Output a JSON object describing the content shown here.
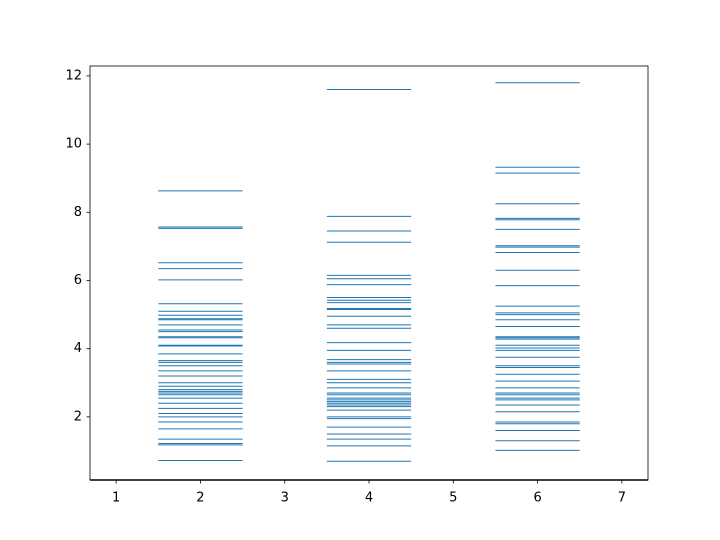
{
  "chart_data": {
    "type": "eventplot",
    "color": "#1f77b4",
    "linelength": 1,
    "xlim": [
      0.69,
      7.31
    ],
    "xticks": [
      1,
      2,
      3,
      4,
      5,
      6,
      7
    ],
    "ylim": [
      0.15,
      12.29
    ],
    "yticks": [
      2,
      4,
      6,
      8,
      10,
      12
    ],
    "series": [
      {
        "offset": 2,
        "values": [
          8.63,
          7.53,
          7.57,
          6.52,
          6.35,
          6.02,
          5.32,
          5.1,
          4.98,
          4.88,
          4.85,
          4.7,
          4.55,
          4.5,
          4.35,
          4.32,
          4.1,
          4.08,
          3.85,
          3.65,
          3.6,
          3.5,
          3.35,
          3.2,
          3.0,
          2.9,
          2.8,
          2.75,
          2.7,
          2.65,
          2.55,
          2.4,
          2.25,
          2.1,
          2.0,
          1.85,
          1.65,
          1.35,
          1.22,
          1.18,
          0.72
        ]
      },
      {
        "offset": 4,
        "values": [
          11.6,
          7.88,
          7.45,
          7.12,
          6.15,
          6.05,
          5.88,
          5.5,
          5.42,
          5.35,
          5.18,
          5.15,
          4.95,
          4.7,
          4.6,
          4.18,
          3.95,
          3.68,
          3.6,
          3.55,
          3.35,
          3.1,
          3.0,
          2.85,
          2.7,
          2.65,
          2.55,
          2.5,
          2.45,
          2.4,
          2.35,
          2.3,
          2.2,
          2.0,
          1.95,
          1.7,
          1.5,
          1.35,
          1.15,
          0.7
        ]
      },
      {
        "offset": 6,
        "values": [
          11.8,
          9.32,
          9.15,
          8.25,
          7.82,
          7.78,
          7.5,
          7.02,
          6.98,
          6.82,
          6.3,
          5.85,
          5.25,
          5.05,
          5.0,
          4.85,
          4.65,
          4.35,
          4.32,
          4.28,
          4.1,
          4.02,
          3.95,
          3.75,
          3.5,
          3.45,
          3.25,
          3.05,
          2.85,
          2.7,
          2.65,
          2.55,
          2.5,
          2.35,
          2.15,
          1.85,
          1.8,
          1.6,
          1.3,
          1.02
        ]
      }
    ]
  }
}
